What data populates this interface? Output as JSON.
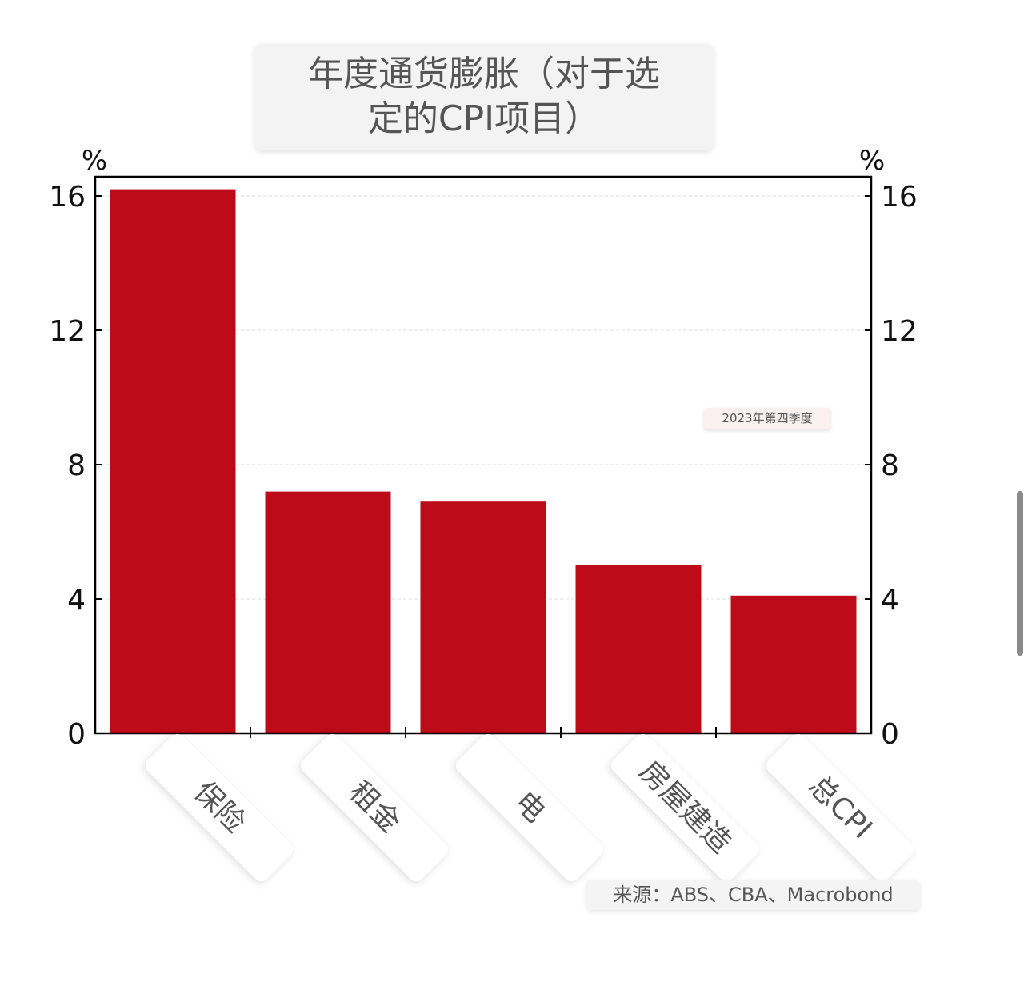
{
  "chart_data": {
    "type": "bar",
    "title_lines": [
      "年度通货膨胀（对于选",
      "定的CPI项目）"
    ],
    "categories": [
      "保险",
      "租金",
      "电",
      "房屋建造",
      "总CPI"
    ],
    "values": [
      16.2,
      7.2,
      6.9,
      5.0,
      4.1
    ],
    "ylabel_left": "%",
    "ylabel_right": "%",
    "ylim": [
      0,
      16.6
    ],
    "yticks": [
      0,
      4,
      8,
      12,
      16
    ],
    "grid": true,
    "bar_color": "#bd0b19",
    "annotation": "2023年第四季度",
    "source": "来源：ABS、CBA、Macrobond"
  }
}
